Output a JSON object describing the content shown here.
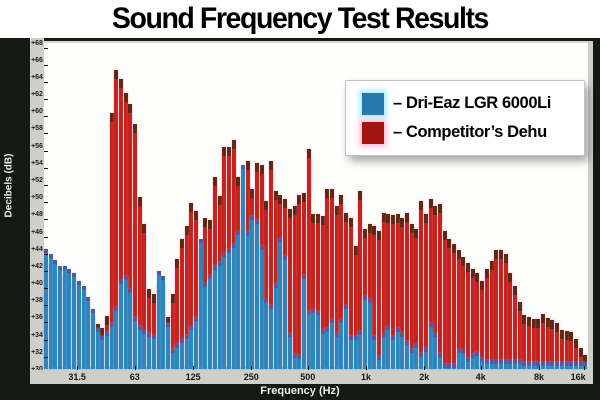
{
  "title": "Sound Frequency Test Results",
  "legend": [
    {
      "label": "– Dri-Eaz LGR 6000Li",
      "color": "#2778ad",
      "glow": "#96ebff"
    },
    {
      "label": "– Competitor’s Dehu",
      "color": "#a31410",
      "glow": "#ffb4d7"
    }
  ],
  "axes": {
    "y_label": "Decibels (dB)",
    "x_label": "Frequency (Hz)",
    "y_tick_labels": [
      "+68",
      "+66",
      "+64",
      "+62",
      "+60",
      "+58",
      "+56",
      "+54",
      "+52",
      "+50",
      "+48",
      "+46",
      "+44",
      "+42",
      "+40",
      "+38",
      "+36",
      "+34",
      "+32",
      "+30"
    ],
    "x_tick_labels": [
      "31.5",
      "63",
      "125",
      "250",
      "500",
      "1k",
      "2k",
      "4k",
      "8k",
      "16k"
    ],
    "x_tick_pos_pct": [
      6.1,
      16.7,
      27.4,
      38.1,
      48.5,
      59.2,
      69.9,
      80.3,
      91.0,
      99.3
    ]
  },
  "chart_data": {
    "type": "bar",
    "title": "Sound Frequency Test Results",
    "xlabel": "Frequency (Hz)",
    "ylabel": "Decibels (dB)",
    "x_scale": "log",
    "ylim": [
      30,
      68
    ],
    "y_tick_step": 2,
    "bar_count": 116,
    "freq_start_hz": 21,
    "freq_end_hz": 15000,
    "bars_per_octave": 12.3,
    "grid": "off",
    "legend_position": "top-right",
    "series": [
      {
        "name": "Dri-Eaz LGR 6000Li",
        "color": "#2e85bb",
        "cap_color": "#5a55a0",
        "values_db": [
          44,
          43.4,
          42.7,
          42,
          42,
          41.6,
          41.2,
          40.2,
          39.7,
          38.4,
          37,
          34.8,
          33.9,
          34.3,
          35.4,
          37.2,
          40.4,
          40.8,
          39.3,
          36,
          35,
          34.6,
          34.2,
          34,
          41.4,
          40.8,
          35.4,
          32.3,
          32.9,
          33.5,
          34,
          35,
          36,
          45.1,
          40,
          41,
          42,
          42.5,
          43.5,
          44,
          44.5,
          46.1,
          53.7,
          45.9,
          47.8,
          47.4,
          44.3,
          38.1,
          37.4,
          39.9,
          45.3,
          43.2,
          34.2,
          31.7,
          31.6,
          41,
          36.8,
          37,
          36.8,
          34.6,
          34.8,
          35.8,
          34.2,
          35.8,
          37.4,
          33.9,
          33.9,
          34.4,
          38.5,
          38.1,
          33.9,
          31.5,
          34.2,
          35,
          33.9,
          34.8,
          34.2,
          33.3,
          32.3,
          32.9,
          31.9,
          32.5,
          35.4,
          34.2,
          31.9,
          30.6,
          30.6,
          30.6,
          32.3,
          32.2,
          31.3,
          31.8,
          32,
          31.3,
          31.1,
          31.1,
          31.1,
          31,
          31,
          31,
          31,
          31,
          30.8,
          30.8,
          30.8,
          30.8,
          30.8,
          30.8,
          30.8,
          30.8,
          30.8,
          30.8,
          30.8,
          30.8,
          30.8,
          30.8
        ]
      },
      {
        "name": "Competitor's Dehu",
        "color": "#c5231c",
        "cap_color": "#5e2812",
        "values_db": [
          42.5,
          42,
          41.5,
          41,
          40.8,
          40.4,
          40,
          39,
          38.3,
          37.2,
          36,
          35.3,
          34.8,
          36.2,
          59.8,
          64.8,
          63.8,
          62.1,
          60.8,
          58.5,
          50,
          46.9,
          39.3,
          38.7,
          40,
          40,
          36,
          38.7,
          42.8,
          45.1,
          46.6,
          49.3,
          48.4,
          44,
          47.6,
          47.4,
          52.3,
          50.1,
          55.9,
          55.8,
          56.6,
          52.3,
          47,
          54.2,
          50.9,
          54,
          53.8,
          49.6,
          54.2,
          50.7,
          50.3,
          49.8,
          48.6,
          49,
          50.2,
          50.5,
          55.6,
          48,
          48.1,
          47.8,
          50.9,
          50.9,
          49,
          50.3,
          48.2,
          47.6,
          44.3,
          50.7,
          46.3,
          46.9,
          46.7,
          46.1,
          48.2,
          48,
          47.9,
          48,
          47.6,
          48.2,
          46.9,
          46.3,
          49.6,
          48,
          49.8,
          49,
          49.2,
          46.1,
          45.1,
          44.5,
          43.9,
          43,
          42.4,
          41.6,
          41.2,
          40.3,
          41.6,
          42.6,
          43.8,
          43.9,
          43.4,
          41.2,
          39.7,
          37.8,
          36.3,
          36,
          35.8,
          35.8,
          36.4,
          35.9,
          35.7,
          35.4,
          34.6,
          34.4,
          34.3,
          33.5,
          32.5,
          31.6
        ]
      }
    ]
  }
}
